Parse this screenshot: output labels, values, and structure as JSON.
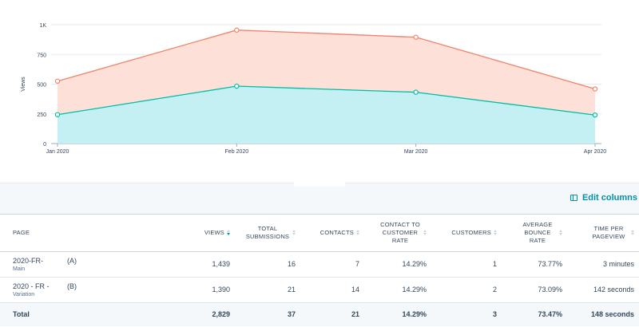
{
  "chart_data": {
    "type": "area",
    "categories": [
      "Jan 2020",
      "Feb 2020",
      "Mar 2020",
      "Apr 2020"
    ],
    "series": [
      {
        "values": [
          525,
          955,
          895,
          460
        ],
        "color": "#f2826a",
        "fill": "#fde0d8"
      },
      {
        "values": [
          243,
          483,
          432,
          240
        ],
        "color": "#00bda5",
        "fill": "#c4f0f3"
      }
    ],
    "ylabel": "Views",
    "ylim": [
      0,
      1000
    ],
    "yticks": [
      0,
      250,
      500,
      750,
      1000
    ],
    "ytick_labels": [
      "0",
      "250",
      "500",
      "750",
      "1K"
    ],
    "grid": true
  },
  "toolbar": {
    "edit_columns_label": "Edit columns",
    "edit_icon": "table-columns-icon"
  },
  "table": {
    "headers": {
      "page": "PAGE",
      "views": "VIEWS",
      "total_submissions": "TOTAL SUBMISSIONS",
      "contacts": "CONTACTS",
      "contact_to_customer_rate": "CONTACT TO CUSTOMER RATE",
      "customers": "CUSTOMERS",
      "average_bounce_rate": "AVERAGE BOUNCE RATE",
      "time_per_pageview": "TIME PER PAGEVIEW"
    },
    "rows": [
      {
        "page": "2020-FR-",
        "variant": "(A)",
        "sub": "Main",
        "views": "1,439",
        "total_submissions": "16",
        "contacts": "7",
        "rate": "14.29%",
        "customers": "1",
        "bounce": "73.77%",
        "time": "3 minutes"
      },
      {
        "page": "2020 - FR -",
        "variant": "(B)",
        "sub": "Variation",
        "views": "1,390",
        "total_submissions": "21",
        "contacts": "14",
        "rate": "14.29%",
        "customers": "2",
        "bounce": "73.09%",
        "time": "142 seconds"
      }
    ],
    "total": {
      "label": "Total",
      "views": "2,829",
      "total_submissions": "37",
      "contacts": "21",
      "rate": "14.29%",
      "customers": "3",
      "bounce": "73.47%",
      "time": "148 seconds"
    }
  }
}
